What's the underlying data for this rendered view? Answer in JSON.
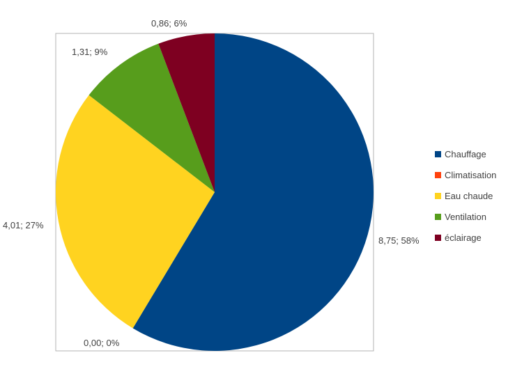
{
  "chart_data": {
    "type": "pie",
    "title": "",
    "categories": [
      "Chauffage",
      "Climatisation",
      "Eau chaude",
      "Ventilation",
      "éclairage"
    ],
    "values": [
      8.75,
      0.0,
      4.01,
      1.31,
      0.86
    ],
    "data_labels": [
      "8,75; 58%",
      "0,00; 0%",
      "4,01; 27%",
      "1,31; 9%",
      "0,86; 6%"
    ],
    "colors": [
      "#004586",
      "#ff420e",
      "#ffd320",
      "#579d1c",
      "#7e0021"
    ],
    "start_angle": "12 o'clock",
    "direction": "clockwise",
    "legend": {
      "position": "right",
      "entries": [
        "Chauffage",
        "Climatisation",
        "Eau chaude",
        "Ventilation",
        "éclairage"
      ]
    }
  }
}
